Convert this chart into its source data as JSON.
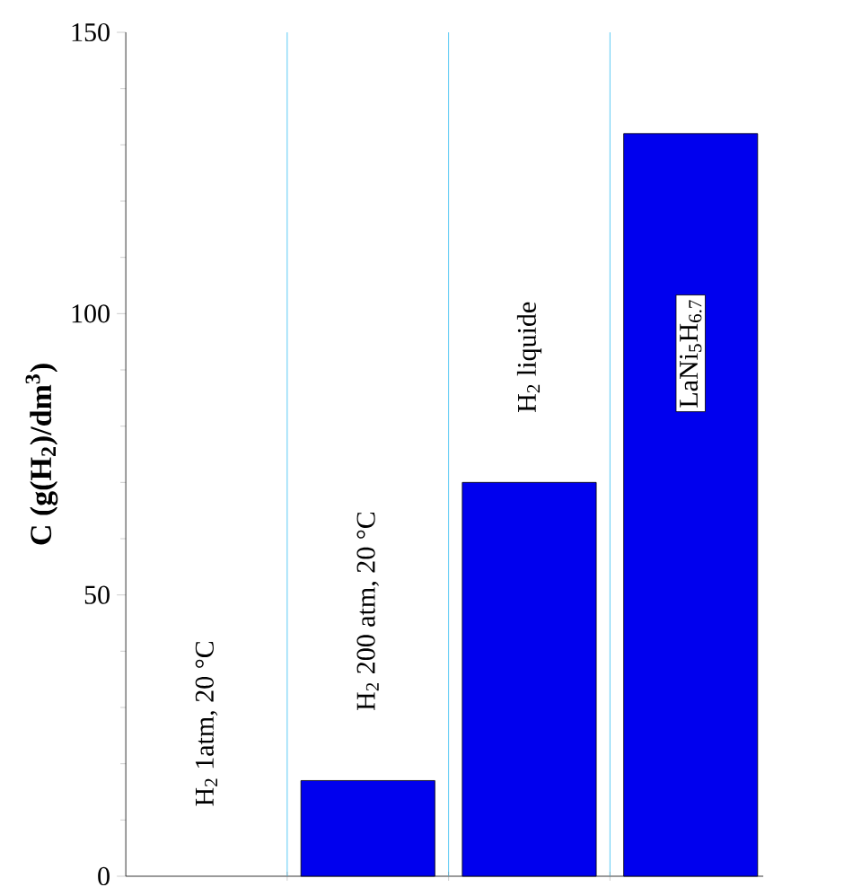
{
  "chart_data": {
    "type": "bar",
    "ylabel": "C (g(H$_{2}$)/dm$^{3}$)",
    "categories": [
      "H$_{2}$ 1atm, 20 °C",
      "H$_{2}$ 200 atm, 20 °C",
      "H$_{2}$ liquide",
      "LaNi$_{5}$H$_{6.7}$"
    ],
    "values": [
      null,
      17,
      70,
      132
    ],
    "color": "#0000ee",
    "ylim": [
      0,
      150
    ],
    "yticks": [
      0,
      50,
      100,
      150
    ],
    "grid": "x"
  }
}
